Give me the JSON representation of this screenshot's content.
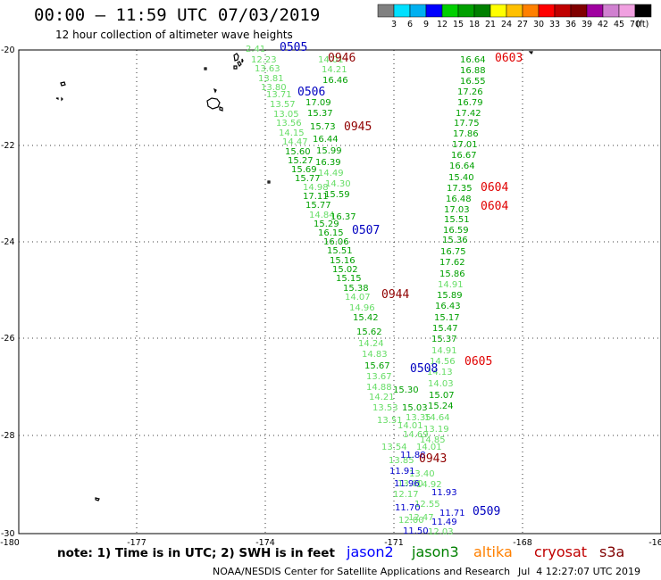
{
  "title": "00:00 – 11:59 UTC 07/03/2019",
  "subtitle": "12 hour collection of altimeter wave heights",
  "colorbar": {
    "colors": [
      "#808080",
      "#00e0ff",
      "#00b0f0",
      "#0000ff",
      "#00d000",
      "#00a000",
      "#008000",
      "#ffff00",
      "#ffc000",
      "#ff8000",
      "#ff0000",
      "#c00000",
      "#800000",
      "#a000a0",
      "#d080d0",
      "#f0a0e0",
      "#000000"
    ],
    "labels": [
      "3",
      "6",
      "9",
      "12",
      "15",
      "18",
      "21",
      "24",
      "27",
      "30",
      "33",
      "36",
      "39",
      "42",
      "45",
      "70"
    ],
    "unit": "(ft)"
  },
  "axes": {
    "lat_labels": [
      "-20",
      "-22",
      "-24",
      "-26",
      "-28",
      "-30"
    ],
    "lon_labels": [
      "-180",
      "-177",
      "-174",
      "-171",
      "-168",
      "-16"
    ]
  },
  "tracks": {
    "green": [
      [
        "2.41",
        "275",
        "58"
      ],
      [
        "12.23",
        "281",
        "70"
      ],
      [
        "13.63",
        "285",
        "80"
      ],
      [
        "13.81",
        "289",
        "91"
      ],
      [
        "13.80",
        "292",
        "101"
      ],
      [
        "13.71",
        "298",
        "109"
      ],
      [
        "13.57",
        "302",
        "120"
      ],
      [
        "13.05",
        "306",
        "131"
      ],
      [
        "13.56",
        "309",
        "141"
      ],
      [
        "14.15",
        "312",
        "152"
      ],
      [
        "14.47",
        "316",
        "162"
      ],
      [
        "15.60",
        "319",
        "173"
      ],
      [
        "15.27",
        "322",
        "183"
      ],
      [
        "15.69",
        "326",
        "193"
      ],
      [
        "15.77",
        "330",
        "203"
      ],
      [
        "14.98",
        "339",
        "213"
      ],
      [
        "17.11",
        "339",
        "223"
      ],
      [
        "15.77",
        "342",
        "233"
      ],
      [
        "14.84",
        "346",
        "244"
      ],
      [
        "15.29",
        "351",
        "254"
      ],
      [
        "16.15",
        "356",
        "264"
      ],
      [
        "16.06",
        "362",
        "274"
      ],
      [
        "15.51",
        "366",
        "284"
      ],
      [
        "15.16",
        "369",
        "295"
      ],
      [
        "15.02",
        "372",
        "305"
      ],
      [
        "15.15",
        "376",
        "315"
      ],
      [
        "15.38",
        "384",
        "326"
      ],
      [
        "14.07",
        "386",
        "336"
      ],
      [
        "14.96",
        "391",
        "348"
      ],
      [
        "15.42",
        "395",
        "359"
      ],
      [
        "15.62",
        "399",
        "375"
      ],
      [
        "14.24",
        "401",
        "388"
      ],
      [
        "14.83",
        "405",
        "400"
      ],
      [
        "15.67",
        "408",
        "413"
      ],
      [
        "13.67",
        "410",
        "425"
      ],
      [
        "14.88",
        "410",
        "437"
      ],
      [
        "14.21",
        "413",
        "448"
      ],
      [
        "13.53",
        "417",
        "460"
      ],
      [
        "13.51",
        "422",
        "474"
      ],
      [
        "13.54",
        "427",
        "504"
      ],
      [
        "13.85",
        "435",
        "519"
      ],
      [
        "12.17",
        "440",
        "557"
      ],
      [
        "12.00",
        "446",
        "586"
      ],
      [
        "14.01",
        "356",
        "70"
      ],
      [
        "14.21",
        "360",
        "81"
      ],
      [
        "16.46",
        "361",
        "93"
      ],
      [
        "17.09",
        "342",
        "118"
      ],
      [
        "15.37",
        "344",
        "130"
      ],
      [
        "15.73",
        "347",
        "145"
      ],
      [
        "16.44",
        "350",
        "159"
      ],
      [
        "15.99",
        "354",
        "172"
      ],
      [
        "16.39",
        "353",
        "185"
      ],
      [
        "14.49",
        "356",
        "197"
      ],
      [
        "14.30",
        "364",
        "209"
      ],
      [
        "15.59",
        "363",
        "221"
      ],
      [
        "16.37",
        "370",
        "246"
      ],
      [
        "15.30",
        "440",
        "440"
      ],
      [
        "15.03",
        "450",
        "460"
      ],
      [
        "13.35",
        "454",
        "471"
      ],
      [
        "14.01",
        "445",
        "480"
      ],
      [
        "14.69",
        "451",
        "490"
      ],
      [
        "16.64",
        "515",
        "70"
      ],
      [
        "16.88",
        "515",
        "82"
      ],
      [
        "16.55",
        "515",
        "94"
      ],
      [
        "17.26",
        "512",
        "106"
      ],
      [
        "16.79",
        "512",
        "118"
      ],
      [
        "17.42",
        "510",
        "130"
      ],
      [
        "17.75",
        "508",
        "141"
      ],
      [
        "17.86",
        "507",
        "153"
      ],
      [
        "17.01",
        "506",
        "165"
      ],
      [
        "16.67",
        "505",
        "177"
      ],
      [
        "16.64",
        "503",
        "189"
      ],
      [
        "15.40",
        "502",
        "202"
      ],
      [
        "17.35",
        "500",
        "214"
      ],
      [
        "16.48",
        "499",
        "226"
      ],
      [
        "17.03",
        "497",
        "238"
      ],
      [
        "15.51",
        "497",
        "249"
      ],
      [
        "16.59",
        "496",
        "261"
      ],
      [
        "15.36",
        "495",
        "272"
      ],
      [
        "16.75",
        "493",
        "285"
      ],
      [
        "17.62",
        "492",
        "297"
      ],
      [
        "15.86",
        "492",
        "310"
      ],
      [
        "14.91",
        "490",
        "322"
      ],
      [
        "15.89",
        "489",
        "334"
      ],
      [
        "16.43",
        "487",
        "346"
      ],
      [
        "15.17",
        "486",
        "359"
      ],
      [
        "15.47",
        "484",
        "371"
      ],
      [
        "15.37",
        "483",
        "383"
      ],
      [
        "14.91",
        "483",
        "396"
      ],
      [
        "14.56",
        "481",
        "408"
      ],
      [
        "14.13",
        "478",
        "420"
      ],
      [
        "14.03",
        "479",
        "433"
      ],
      [
        "15.07",
        "480",
        "446"
      ],
      [
        "15.24",
        "479",
        "458"
      ],
      [
        "14.64",
        "475",
        "471"
      ],
      [
        "13.19",
        "474",
        "484"
      ],
      [
        "14.85",
        "470",
        "496"
      ],
      [
        "14.01",
        "466",
        "504"
      ],
      [
        "13.40",
        "458",
        "534"
      ],
      [
        "13.00",
        "445",
        "545"
      ],
      [
        "14.92",
        "466",
        "546"
      ],
      [
        "12.55",
        "464",
        "568"
      ],
      [
        "12.47",
        "457",
        "583"
      ],
      [
        "12.03",
        "479",
        "599"
      ]
    ],
    "blue": [
      [
        "11.88",
        "448",
        "513"
      ],
      [
        "11.91",
        "436",
        "531"
      ],
      [
        "11.96",
        "441",
        "545"
      ],
      [
        "11.93",
        "483",
        "555"
      ],
      [
        "11.70",
        "442",
        "572"
      ],
      [
        "11.71",
        "492",
        "578"
      ],
      [
        "11.49",
        "483",
        "588"
      ],
      [
        "11.50",
        "451",
        "598"
      ]
    ],
    "passes": [
      [
        "0505",
        "313",
        "57",
        "#0000c0"
      ],
      [
        "0506",
        "333",
        "107",
        "#0000c0"
      ],
      [
        "0507",
        "394",
        "262",
        "#0000c0"
      ],
      [
        "0508",
        "459",
        "417",
        "#0000c0"
      ],
      [
        "0509",
        "529",
        "577",
        "#0000c0"
      ],
      [
        "0946",
        "367",
        "69",
        "#900000"
      ],
      [
        "0945",
        "385",
        "146",
        "#900000"
      ],
      [
        "0944",
        "427",
        "334",
        "#900000"
      ],
      [
        "0943",
        "469",
        "518",
        "#900000"
      ],
      [
        "0603",
        "554",
        "69",
        "#e00000"
      ],
      [
        "0604",
        "538",
        "214",
        "#e00000"
      ],
      [
        "0604",
        "538",
        "235",
        "#e00000"
      ],
      [
        "0605",
        "520",
        "409",
        "#e00000"
      ]
    ]
  },
  "footer": {
    "note": "note: 1) Time is in UTC; 2) SWH is in feet",
    "satellites": [
      {
        "name": "jason2",
        "color": "#0000ff"
      },
      {
        "name": "jason3",
        "color": "#008000"
      },
      {
        "name": "altika",
        "color": "#ff8000"
      },
      {
        "name": "cryosat",
        "color": "#c00000"
      },
      {
        "name": "s3a",
        "color": "#800000"
      }
    ],
    "credit": "NOAA/NESDIS Center for Satellite Applications and Research",
    "timestamp": "Jul  4 12:27:07 UTC 2019"
  }
}
